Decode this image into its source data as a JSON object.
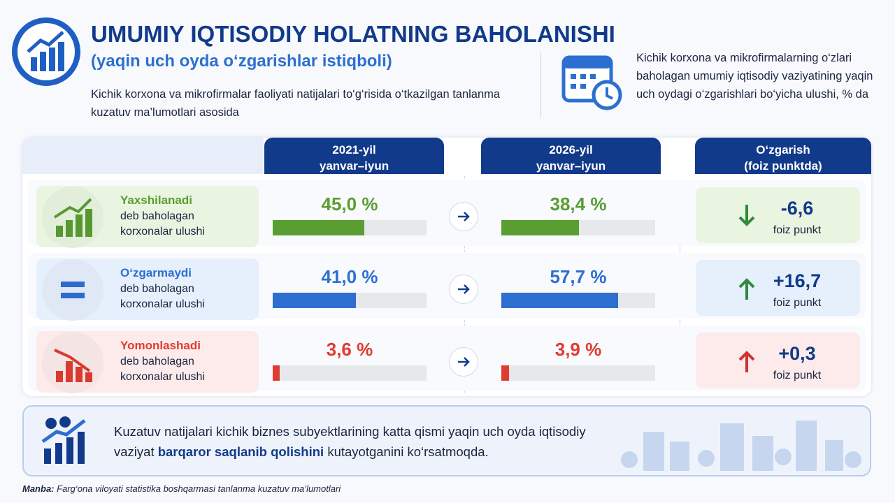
{
  "header": {
    "title": "UMUMIY IQTISODIY HOLATNING BAHOLANISHI",
    "subtitle": "(yaqin uch oyda o‘zgarishlar istiqboli)",
    "description": "Kichik korxona va mikrofirmalar faoliyati natijalari to‘g‘risida o‘tkazilgan tanlanma kuzatuv ma’lumotlari asosida",
    "note": "Kichik korxona va mikrofirmalarning o‘zlari baholagan umumiy iqtisodiy vaziyatining yaqin uch oydagi o‘zgarishlari bo‘yicha ulushi, % da"
  },
  "table": {
    "columns": [
      [
        "2021-yil",
        "yanvar–iyun"
      ],
      [
        "2026-yil",
        "yanvar–iyun"
      ],
      [
        "O‘zgarish",
        "(foiz punktda)"
      ]
    ],
    "rows": [
      {
        "label": "Yaxshilanadi",
        "caption": [
          "deb baholagan",
          "korxonalar ulushi"
        ],
        "color": "#5a9e32",
        "values": [
          45.0,
          38.4
        ],
        "value_labels": [
          "45,0 %",
          "38,4 %"
        ],
        "change": -6.6,
        "change_label": "-6,6",
        "change_unit": "foiz punkt"
      },
      {
        "label": "O‘zgarmaydi",
        "caption": [
          "deb baholagan",
          "korxonalar ulushi"
        ],
        "color": "#2d6fd0",
        "values": [
          41.0,
          57.7
        ],
        "value_labels": [
          "41,0 %",
          "57,7 %"
        ],
        "change": 16.7,
        "change_label": "+16,7",
        "change_unit": "foiz punkt"
      },
      {
        "label": "Yomonlashadi",
        "caption": [
          "deb baholagan",
          "korxonalar ulushi"
        ],
        "color": "#e03c31",
        "values": [
          3.6,
          3.9
        ],
        "value_labels": [
          "3,6 %",
          "3,9 %"
        ],
        "change": 0.3,
        "change_label": "+0,3",
        "change_unit": "foiz punkt"
      }
    ]
  },
  "conclusion": {
    "before": "Kuzatuv natijalari kichik biznes subyektlarining katta qismi yaqin uch oyda iqtisodiy vaziyat ",
    "bold": "barqaror saqlanib qolishini",
    "after": " kutayotganini ko‘rsatmoqda."
  },
  "source": {
    "label": "Manba:",
    "text": "Farg‘ona viloyati statistika boshqarmasi tanlanma kuzatuv ma’lumotlari"
  }
}
